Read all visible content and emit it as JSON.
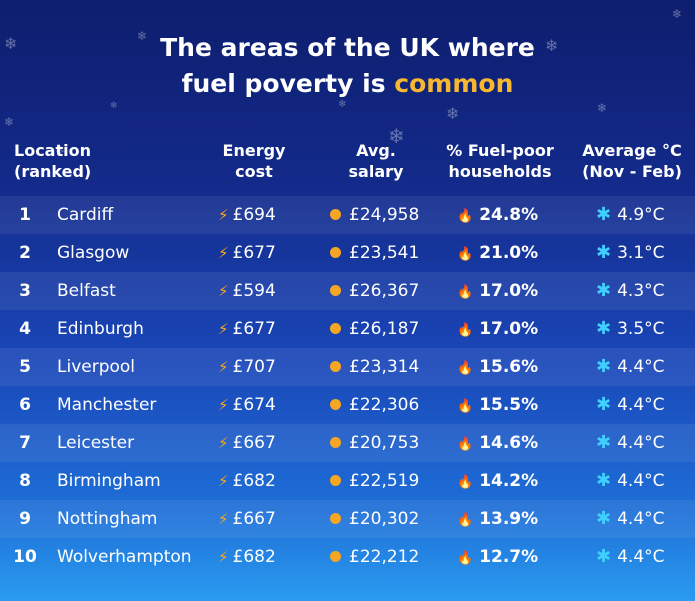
{
  "title": {
    "line1": "The areas of the UK where",
    "line2_prefix": "fuel poverty is ",
    "line2_highlight": "common"
  },
  "colors": {
    "highlight": "#f7b731",
    "bolt": "#f7a81c",
    "coin": "#f5a623",
    "flame": "#ff5a36",
    "snowflake": "#3fd0ff"
  },
  "icons": {
    "energy": "lightning-bolt-icon",
    "salary": "coin-icon",
    "fuel_poor": "flame-icon",
    "temperature": "snowflake-icon",
    "background": "snowflake-decoration"
  },
  "headers": {
    "location": [
      "Location",
      "(ranked)"
    ],
    "energy": [
      "Energy",
      "cost"
    ],
    "salary": [
      "Avg.",
      "salary"
    ],
    "fuel_poor": [
      "% Fuel-poor",
      "households"
    ],
    "temperature": [
      "Average °C",
      "(Nov - Feb)"
    ]
  },
  "rows": [
    {
      "rank": "1",
      "city": "Cardiff",
      "energy": "£694",
      "salary": "£24,958",
      "pct": "24.8%",
      "temp": "4.9°C"
    },
    {
      "rank": "2",
      "city": "Glasgow",
      "energy": "£677",
      "salary": "£23,541",
      "pct": "21.0%",
      "temp": "3.1°C"
    },
    {
      "rank": "3",
      "city": "Belfast",
      "energy": "£594",
      "salary": "£26,367",
      "pct": "17.0%",
      "temp": "4.3°C"
    },
    {
      "rank": "4",
      "city": "Edinburgh",
      "energy": "£677",
      "salary": "£26,187",
      "pct": "17.0%",
      "temp": "3.5°C"
    },
    {
      "rank": "5",
      "city": "Liverpool",
      "energy": "£707",
      "salary": "£23,314",
      "pct": "15.6%",
      "temp": "4.4°C"
    },
    {
      "rank": "6",
      "city": "Manchester",
      "energy": "£674",
      "salary": "£22,306",
      "pct": "15.5%",
      "temp": "4.4°C"
    },
    {
      "rank": "7",
      "city": "Leicester",
      "energy": "£667",
      "salary": "£20,753",
      "pct": "14.6%",
      "temp": "4.4°C"
    },
    {
      "rank": "8",
      "city": "Birmingham",
      "energy": "£682",
      "salary": "£22,519",
      "pct": "14.2%",
      "temp": "4.4°C"
    },
    {
      "rank": "9",
      "city": "Nottingham",
      "energy": "£667",
      "salary": "£20,302",
      "pct": "13.9%",
      "temp": "4.4°C"
    },
    {
      "rank": "10",
      "city": "Wolverhampton",
      "energy": "£682",
      "salary": "£22,212",
      "pct": "12.7%",
      "temp": "4.4°C"
    }
  ]
}
